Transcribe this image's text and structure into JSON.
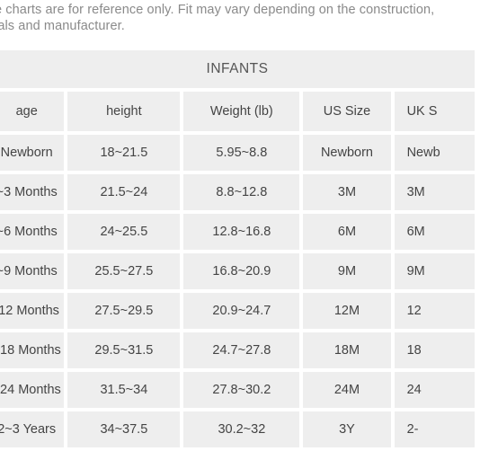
{
  "note": {
    "line1": "e charts are for reference only. Fit may vary depending on the construction,",
    "line2": "ials and manufacturer."
  },
  "table": {
    "title": "INFANTS",
    "headers": [
      "age",
      "height",
      "Weight (lb)",
      "US Size",
      "UK S"
    ],
    "rows": [
      [
        "Newborn",
        "18~21.5",
        "5.95~8.8",
        "Newborn",
        "Newb"
      ],
      [
        "~3 Months",
        "21.5~24",
        "8.8~12.8",
        "3M",
        "3M"
      ],
      [
        "~6 Months",
        "24~25.5",
        "12.8~16.8",
        "6M",
        "6M"
      ],
      [
        "~9 Months",
        "25.5~27.5",
        "16.8~20.9",
        "9M",
        "9M"
      ],
      [
        "-12 Months",
        "27.5~29.5",
        "20.9~24.7",
        "12M",
        "12"
      ],
      [
        "~18 Months",
        "29.5~31.5",
        "24.7~27.8",
        "18M",
        "18"
      ],
      [
        "~24 Months",
        "31.5~34",
        "27.8~30.2",
        "24M",
        "24"
      ],
      [
        "2~3 Years",
        "34~37.5",
        "30.2~32",
        "3Y",
        "2-"
      ]
    ]
  }
}
